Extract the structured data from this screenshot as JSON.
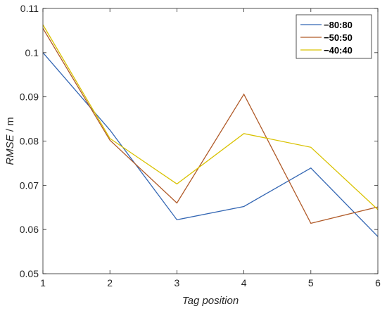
{
  "chart_data": {
    "type": "line",
    "x": [
      1,
      2,
      3,
      4,
      5,
      6
    ],
    "series": [
      {
        "name": "80:80",
        "color": "#3366b3",
        "values": [
          0.1,
          0.0825,
          0.0622,
          0.0652,
          0.0739,
          0.0584
        ]
      },
      {
        "name": "50:50",
        "color": "#b05a28",
        "values": [
          0.1055,
          0.0802,
          0.066,
          0.0906,
          0.0614,
          0.0651
        ]
      },
      {
        "name": "40:40",
        "color": "#d9c200",
        "values": [
          0.1063,
          0.0806,
          0.0703,
          0.0817,
          0.0786,
          0.0645
        ]
      }
    ],
    "xlabel": "Tag position",
    "ylabel_italic": "RMSE",
    "ylabel_unit": " / m",
    "xlim": [
      1,
      6
    ],
    "ylim": [
      0.05,
      0.11
    ],
    "xticks": [
      1,
      2,
      3,
      4,
      5,
      6
    ],
    "xtick_labels": [
      "1",
      "2",
      "3",
      "4",
      "5",
      "6"
    ],
    "yticks": [
      0.05,
      0.06,
      0.07,
      0.08,
      0.09,
      0.1,
      0.11
    ],
    "ytick_labels": [
      "0.05",
      "0.06",
      "0.07",
      "0.08",
      "0.09",
      "0.1",
      "0.11"
    ],
    "grid": false,
    "legend_position": "top-right",
    "legend_labels": [
      "−80:80",
      "−50:50",
      "−40:40"
    ]
  }
}
